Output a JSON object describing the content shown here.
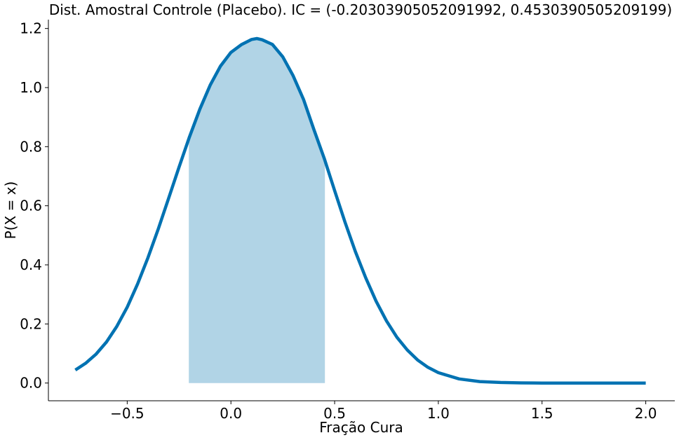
{
  "chart_data": {
    "type": "line",
    "title": "Dist. Amostral Controle (Placebo). IC = (-0.20303905052091992, 0.4530390505209199)",
    "xlabel": "Fração Cura",
    "ylabel": "P(X = x)",
    "xlim": [
      -0.88,
      2.14
    ],
    "ylim": [
      -0.06,
      1.23
    ],
    "xticks": [
      -0.5,
      0.0,
      0.5,
      1.0,
      1.5,
      2.0
    ],
    "xtick_labels": [
      "−0.5",
      "0.0",
      "0.5",
      "1.0",
      "1.5",
      "2.0"
    ],
    "yticks": [
      0.0,
      0.2,
      0.4,
      0.6,
      0.8,
      1.0,
      1.2
    ],
    "ytick_labels": [
      "0.0",
      "0.2",
      "0.4",
      "0.6",
      "0.8",
      "1.0",
      "1.2"
    ],
    "series": [
      {
        "x": [
          -0.75,
          -0.7,
          -0.65,
          -0.6,
          -0.55,
          -0.5,
          -0.45,
          -0.4,
          -0.35,
          -0.3,
          -0.25,
          -0.2,
          -0.15,
          -0.1,
          -0.05,
          0.0,
          0.05,
          0.1,
          0.125,
          0.15,
          0.2,
          0.25,
          0.3,
          0.35,
          0.4,
          0.45,
          0.5,
          0.55,
          0.6,
          0.65,
          0.7,
          0.75,
          0.8,
          0.85,
          0.9,
          0.95,
          1.0,
          1.1,
          1.2,
          1.3,
          1.4,
          1.5,
          1.6,
          1.8,
          2.0
        ],
        "y": [
          0.044,
          0.067,
          0.098,
          0.139,
          0.192,
          0.257,
          0.335,
          0.424,
          0.522,
          0.626,
          0.731,
          0.833,
          0.927,
          1.008,
          1.073,
          1.119,
          1.145,
          1.163,
          1.166,
          1.162,
          1.146,
          1.104,
          1.04,
          0.96,
          0.858,
          0.76,
          0.651,
          0.545,
          0.445,
          0.356,
          0.277,
          0.21,
          0.155,
          0.112,
          0.078,
          0.053,
          0.035,
          0.014,
          0.005,
          0.002,
          0.0005,
          0.0001,
          0.0,
          0.0,
          0.0
        ]
      }
    ],
    "interval": [
      -0.20303905052091992,
      0.4530390505209199
    ],
    "colors": {
      "line": "#0072b2",
      "fill": "#b1d4e6"
    },
    "grid": false
  }
}
